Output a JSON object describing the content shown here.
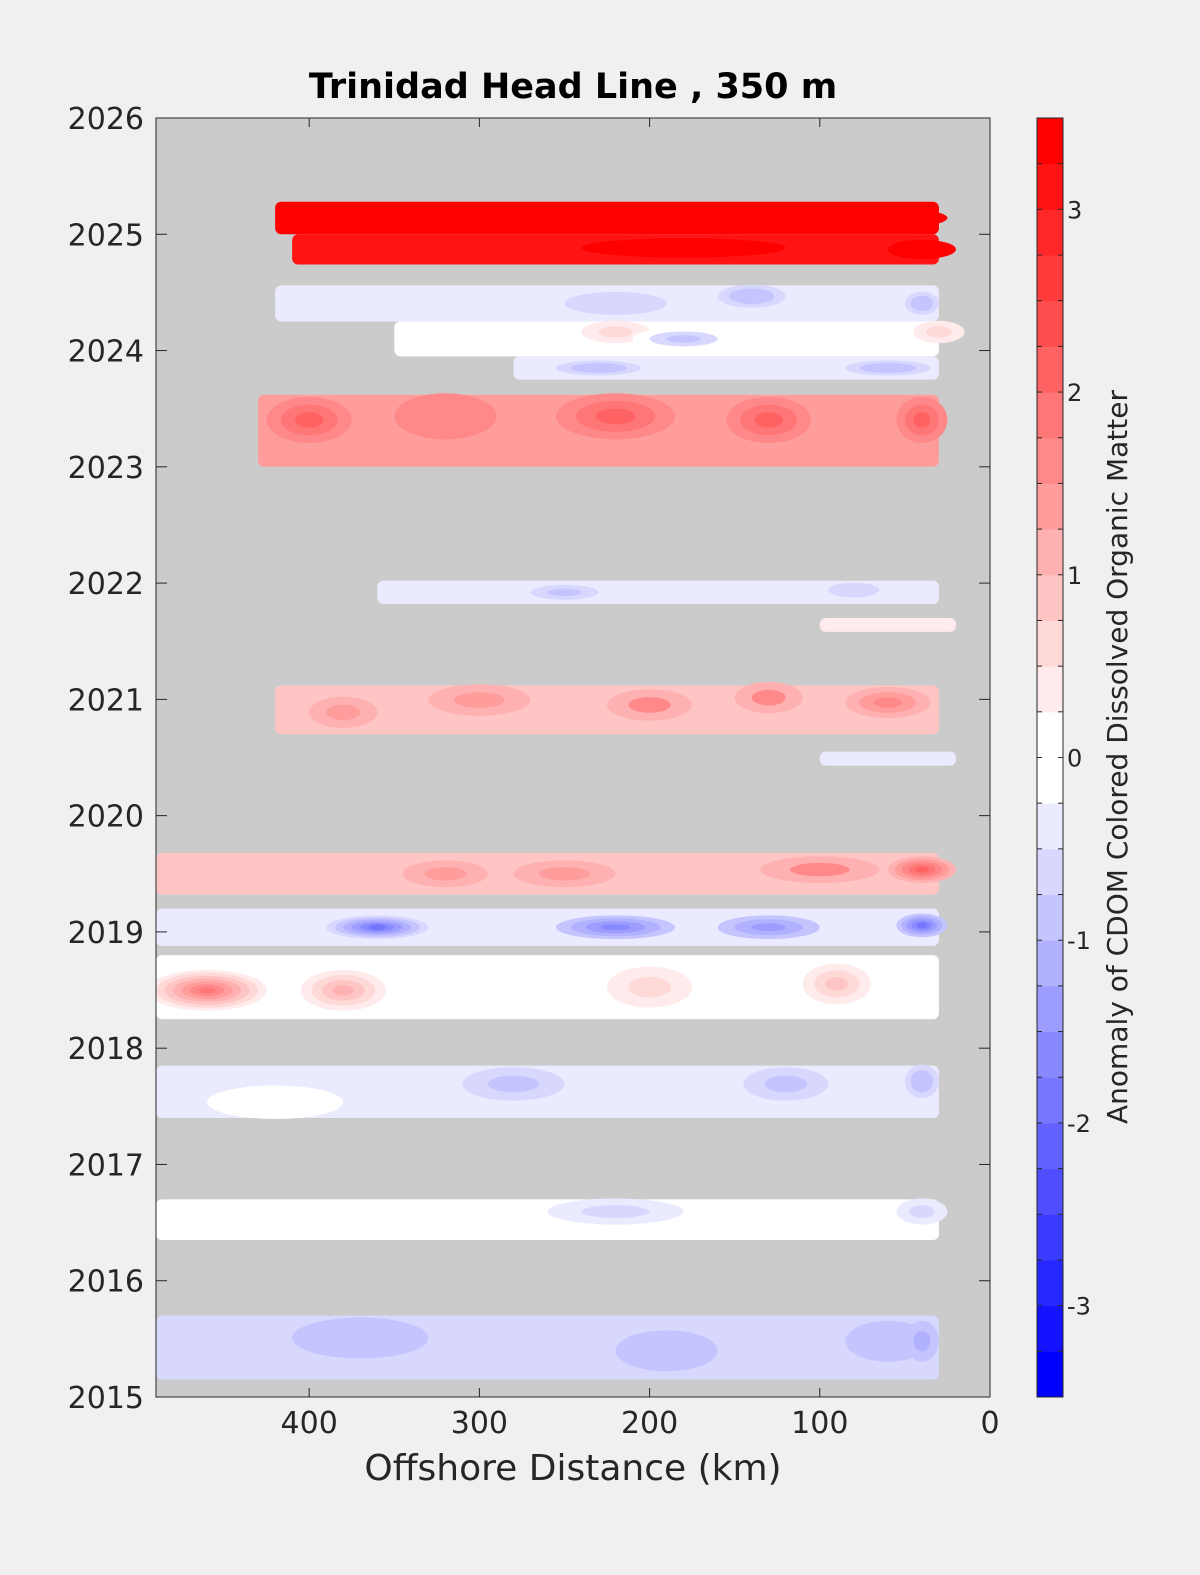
{
  "chart_data": {
    "type": "heatmap",
    "title": "Trinidad Head Line , 350 m",
    "xlabel": "Offshore Distance (km)",
    "ylabel": "",
    "xlim": [
      490,
      0
    ],
    "ylim": [
      2015,
      2026
    ],
    "x_reversed": true,
    "x_ticks": [
      400,
      300,
      200,
      100,
      0
    ],
    "x_tick_labels": [
      "400",
      "300",
      "200",
      "100",
      "0"
    ],
    "y_ticks": [
      2015,
      2016,
      2017,
      2018,
      2019,
      2020,
      2021,
      2022,
      2023,
      2024,
      2025,
      2026
    ],
    "y_tick_labels": [
      "2015",
      "2016",
      "2017",
      "2018",
      "2019",
      "2020",
      "2021",
      "2022",
      "2023",
      "2024",
      "2025",
      "2026"
    ],
    "missing_data_color": "#cbcbcb",
    "colorbar": {
      "label": "Anomaly of CDOM Colored Dissolved Organic Matter",
      "limits": [
        -3.5,
        3.5
      ],
      "step": 0.25,
      "ticks": [
        3,
        2,
        1,
        0,
        -1,
        -2,
        -3
      ],
      "tick_labels": [
        "3",
        "2",
        "1",
        "0",
        "-1",
        "-2",
        "-3"
      ],
      "colors": [
        "#0000ff",
        "#1313ff",
        "#2727ff",
        "#3b3bff",
        "#4e4eff",
        "#6262ff",
        "#7676ff",
        "#8989ff",
        "#9d9dff",
        "#b1b1ff",
        "#c4c4ff",
        "#d8d8ff",
        "#ebebff",
        "#ffffff",
        "#ffffff",
        "#ffebeb",
        "#ffd8d8",
        "#ffc4c4",
        "#ffb1b1",
        "#ff9d9d",
        "#ff8989",
        "#ff7676",
        "#ff6262",
        "#ff4e4e",
        "#ff3b3b",
        "#ff2727",
        "#ff1313",
        "#ff0000"
      ]
    },
    "bands": [
      {
        "y": [
          2025.0,
          2025.28
        ],
        "x": [
          30,
          420
        ],
        "value": 3.3,
        "peaks": [
          {
            "x": 60,
            "dy": 0.5,
            "w": 70,
            "v": 3.5
          }
        ]
      },
      {
        "y": [
          2024.74,
          2025.0
        ],
        "x": [
          30,
          410
        ],
        "value": 3.0,
        "peaks": [
          {
            "x": 180,
            "dy": 0.45,
            "w": 120,
            "v": 3.5
          },
          {
            "x": 40,
            "dy": 0.5,
            "w": 40,
            "v": 3.5
          }
        ]
      },
      {
        "y": [
          2024.25,
          2024.56
        ],
        "x": [
          30,
          420
        ],
        "value": -0.3,
        "peaks": [
          {
            "x": 140,
            "dy": 0.3,
            "w": 40,
            "v": -1.0
          },
          {
            "x": 40,
            "dy": 0.5,
            "w": 20,
            "v": -1.0
          },
          {
            "x": 220,
            "dy": 0.5,
            "w": 60,
            "v": -0.6
          }
        ]
      },
      {
        "y": [
          2023.95,
          2024.25
        ],
        "x": [
          30,
          350
        ],
        "value": 0.05,
        "peaks": [
          {
            "x": 220,
            "dy": 0.3,
            "w": 40,
            "v": 0.5
          },
          {
            "x": 180,
            "dy": 0.5,
            "w": 60,
            "v": -0.8
          },
          {
            "x": 30,
            "dy": 0.3,
            "w": 30,
            "v": 0.5
          }
        ]
      },
      {
        "y": [
          2023.75,
          2023.95
        ],
        "x": [
          30,
          280
        ],
        "value": -0.3,
        "peaks": [
          {
            "x": 230,
            "dy": 0.5,
            "w": 50,
            "v": -1.0
          },
          {
            "x": 60,
            "dy": 0.5,
            "w": 50,
            "v": -1.0
          }
        ]
      },
      {
        "y": [
          2023.0,
          2023.62
        ],
        "x": [
          30,
          430
        ],
        "value": 1.3,
        "peaks": [
          {
            "x": 400,
            "dy": 0.35,
            "w": 50,
            "v": 2.0
          },
          {
            "x": 220,
            "dy": 0.3,
            "w": 70,
            "v": 2.1
          },
          {
            "x": 130,
            "dy": 0.35,
            "w": 50,
            "v": 2.1
          },
          {
            "x": 40,
            "dy": 0.35,
            "w": 30,
            "v": 2.0
          },
          {
            "x": 320,
            "dy": 0.3,
            "w": 60,
            "v": 1.7
          }
        ]
      },
      {
        "y": [
          2021.82,
          2022.02
        ],
        "x": [
          30,
          360
        ],
        "value": -0.3,
        "peaks": [
          {
            "x": 250,
            "dy": 0.5,
            "w": 40,
            "v": -0.9
          },
          {
            "x": 80,
            "dy": 0.4,
            "w": 30,
            "v": -0.6
          }
        ]
      },
      {
        "y": [
          2021.58,
          2021.7
        ],
        "x": [
          20,
          100
        ],
        "value": 0.4,
        "peaks": []
      },
      {
        "y": [
          2020.7,
          2021.12
        ],
        "x": [
          30,
          420
        ],
        "value": 0.9,
        "peaks": [
          {
            "x": 380,
            "dy": 0.55,
            "w": 40,
            "v": 1.4
          },
          {
            "x": 200,
            "dy": 0.4,
            "w": 50,
            "v": 1.5
          },
          {
            "x": 60,
            "dy": 0.35,
            "w": 50,
            "v": 1.6
          },
          {
            "x": 130,
            "dy": 0.25,
            "w": 40,
            "v": 1.5
          },
          {
            "x": 300,
            "dy": 0.3,
            "w": 60,
            "v": 1.3
          }
        ]
      },
      {
        "y": [
          2020.43,
          2020.55
        ],
        "x": [
          20,
          100
        ],
        "value": -0.5,
        "peaks": []
      },
      {
        "y": [
          2019.32,
          2019.68
        ],
        "x": [
          30,
          490
        ],
        "value": 0.9,
        "peaks": [
          {
            "x": 40,
            "dy": 0.4,
            "w": 40,
            "v": 2.2
          },
          {
            "x": 100,
            "dy": 0.4,
            "w": 70,
            "v": 1.5
          },
          {
            "x": 250,
            "dy": 0.5,
            "w": 60,
            "v": 1.4
          },
          {
            "x": 320,
            "dy": 0.5,
            "w": 50,
            "v": 1.3
          }
        ]
      },
      {
        "y": [
          2018.88,
          2019.2
        ],
        "x": [
          30,
          490
        ],
        "value": -0.5,
        "peaks": [
          {
            "x": 360,
            "dy": 0.5,
            "w": 60,
            "v": -1.9
          },
          {
            "x": 220,
            "dy": 0.5,
            "w": 70,
            "v": -1.6
          },
          {
            "x": 40,
            "dy": 0.45,
            "w": 30,
            "v": -1.8
          },
          {
            "x": 130,
            "dy": 0.5,
            "w": 60,
            "v": -1.3
          }
        ]
      },
      {
        "y": [
          2018.25,
          2018.8
        ],
        "x": [
          30,
          490
        ],
        "value": 0.1,
        "peaks": [
          {
            "x": 460,
            "dy": 0.55,
            "w": 70,
            "v": 1.8
          },
          {
            "x": 380,
            "dy": 0.55,
            "w": 50,
            "v": 1.0
          },
          {
            "x": 90,
            "dy": 0.45,
            "w": 40,
            "v": 0.9
          },
          {
            "x": 200,
            "dy": 0.5,
            "w": 50,
            "v": 0.6
          }
        ]
      },
      {
        "y": [
          2017.4,
          2017.85
        ],
        "x": [
          30,
          490
        ],
        "value": -0.3,
        "peaks": [
          {
            "x": 280,
            "dy": 0.35,
            "w": 60,
            "v": -0.9
          },
          {
            "x": 120,
            "dy": 0.35,
            "w": 50,
            "v": -0.8
          },
          {
            "x": 40,
            "dy": 0.3,
            "w": 20,
            "v": -1.0
          },
          {
            "x": 420,
            "dy": 0.7,
            "w": 80,
            "v": 0.0
          }
        ]
      },
      {
        "y": [
          2016.35,
          2016.7
        ],
        "x": [
          30,
          490
        ],
        "value": -0.15,
        "peaks": [
          {
            "x": 220,
            "dy": 0.3,
            "w": 80,
            "v": -0.7
          },
          {
            "x": 40,
            "dy": 0.3,
            "w": 30,
            "v": -0.7
          },
          {
            "x": 420,
            "dy": 0.6,
            "w": 80,
            "v": 0.1
          }
        ]
      },
      {
        "y": [
          2015.15,
          2015.7
        ],
        "x": [
          30,
          490
        ],
        "value": -0.6,
        "peaks": [
          {
            "x": 370,
            "dy": 0.35,
            "w": 80,
            "v": -0.9
          },
          {
            "x": 190,
            "dy": 0.55,
            "w": 60,
            "v": -1.0
          },
          {
            "x": 60,
            "dy": 0.4,
            "w": 50,
            "v": -0.9
          },
          {
            "x": 40,
            "dy": 0.4,
            "w": 20,
            "v": -1.1
          }
        ]
      }
    ]
  }
}
